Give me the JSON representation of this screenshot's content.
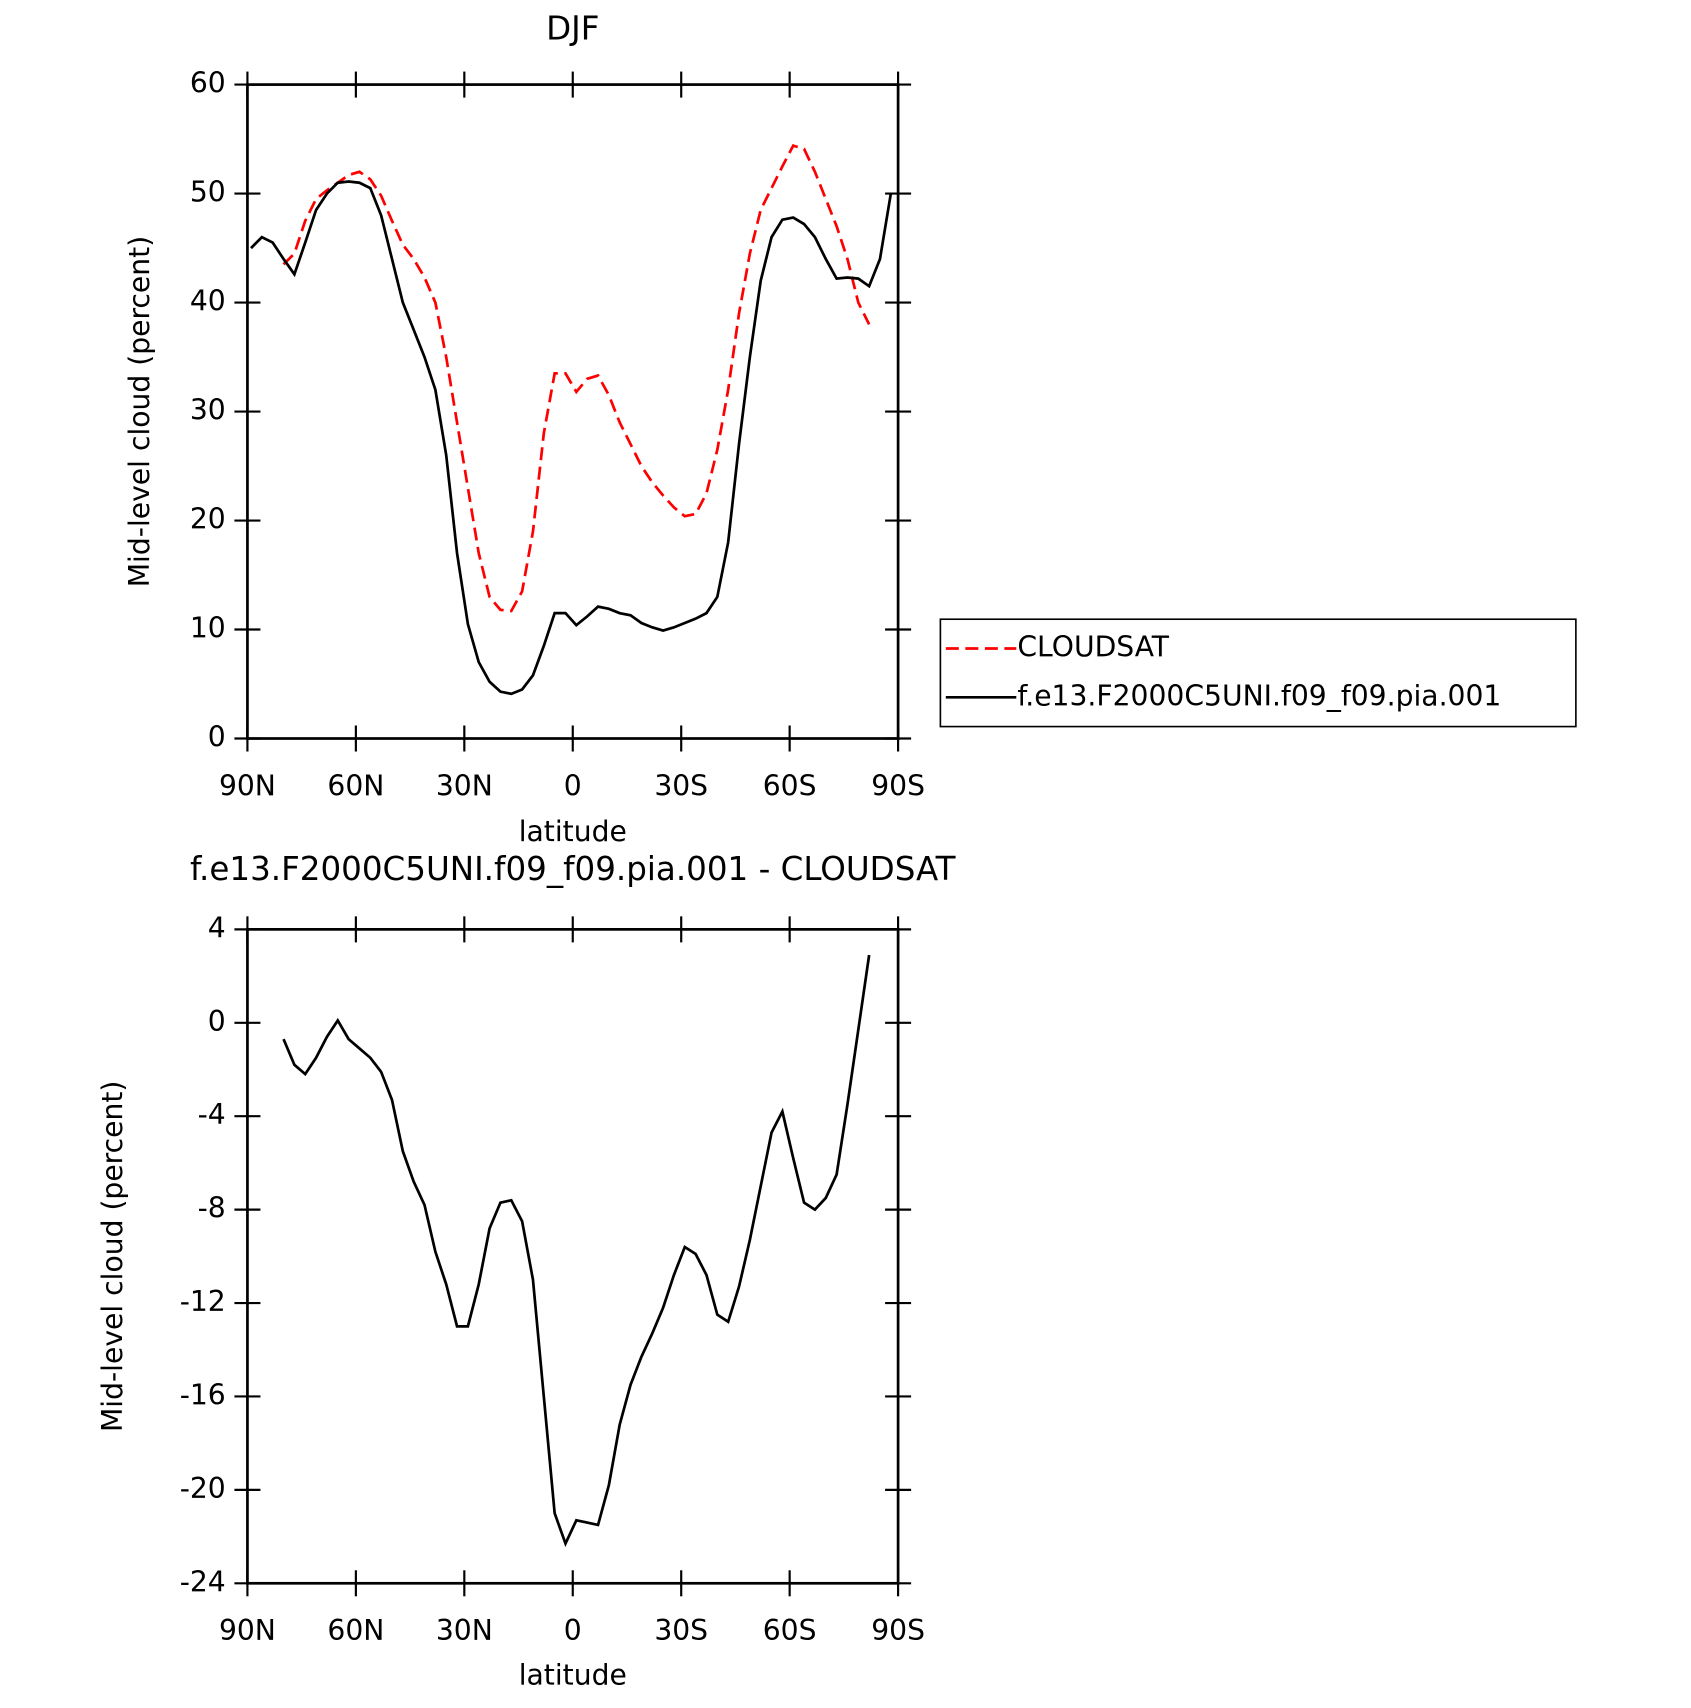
{
  "chart_data": [
    {
      "type": "line",
      "title": "DJF",
      "xlabel": "latitude",
      "ylabel": "Mid-level cloud (percent)",
      "x": [
        89,
        86,
        83,
        80,
        77,
        74,
        71,
        68,
        65,
        62,
        59,
        56,
        53,
        50,
        47,
        44,
        41,
        38,
        35,
        32,
        29,
        26,
        23,
        20,
        17,
        14,
        11,
        8,
        5,
        2,
        -1,
        -4,
        -7,
        -10,
        -13,
        -16,
        -19,
        -22,
        -25,
        -28,
        -31,
        -34,
        -37,
        -40,
        -43,
        -46,
        -49,
        -52,
        -55,
        -58,
        -61,
        -64,
        -67,
        -70,
        -73,
        -76,
        -79,
        -82,
        -85,
        -88
      ],
      "series": [
        {
          "name": "CLOUDSAT",
          "color": "#ff0000",
          "dash": true,
          "values": [
            null,
            null,
            null,
            43.5,
            44.5,
            47.5,
            49.5,
            50.3,
            51,
            51.7,
            52,
            51.3,
            49.8,
            47.5,
            45.3,
            44,
            42.3,
            40,
            35,
            29,
            23,
            17,
            13,
            11.8,
            11.7,
            13.5,
            19,
            28,
            33.5,
            33.5,
            31.8,
            33,
            33.3,
            31.5,
            29,
            27,
            25,
            23.5,
            22.3,
            21.2,
            20.4,
            20.6,
            22.5,
            26.5,
            32,
            39,
            44.5,
            48.5,
            50.5,
            52.5,
            54.4,
            54.1,
            52,
            49.5,
            47,
            44,
            40,
            38,
            null,
            null
          ]
        },
        {
          "name": "f.e13.F2000C5UNI.f09_f09.pia.001",
          "color": "#000000",
          "dash": false,
          "values": [
            45,
            46,
            45.5,
            44,
            42.6,
            45.5,
            48.5,
            50,
            51,
            51.1,
            51,
            50.5,
            48,
            44,
            40,
            37.5,
            35,
            32,
            26,
            17,
            10.5,
            7,
            5.2,
            4.3,
            4.1,
            4.5,
            5.8,
            8.5,
            11.5,
            11.5,
            10.4,
            11.2,
            12.1,
            11.9,
            11.5,
            11.3,
            10.6,
            10.2,
            9.9,
            10.2,
            10.6,
            11,
            11.5,
            13,
            18,
            27,
            35,
            42,
            46,
            47.6,
            47.8,
            47.2,
            46,
            44,
            42.2,
            42.3,
            42.2,
            41.5,
            44,
            50
          ]
        }
      ],
      "xlim": [
        90,
        -90
      ],
      "xticks": [
        {
          "value": 90,
          "label": "90N"
        },
        {
          "value": 60,
          "label": "60N"
        },
        {
          "value": 30,
          "label": "30N"
        },
        0,
        {
          "value": -30,
          "label": "30S"
        },
        {
          "value": -60,
          "label": "60S"
        },
        {
          "value": -90,
          "label": "90S"
        }
      ],
      "ylim": [
        0,
        60
      ],
      "yticks": [
        0,
        10,
        20,
        30,
        40,
        50,
        60
      ],
      "legend": "right"
    },
    {
      "type": "line",
      "title": "f.e13.F2000C5UNI.f09_f09.pia.001 - CLOUDSAT",
      "xlabel": "latitude",
      "ylabel": "Mid-level cloud (percent)",
      "x": [
        80,
        77,
        74,
        71,
        68,
        65,
        62,
        59,
        56,
        53,
        50,
        47,
        44,
        41,
        38,
        35,
        32,
        29,
        26,
        23,
        20,
        17,
        14,
        11,
        8,
        5,
        2,
        -1,
        -4,
        -7,
        -10,
        -13,
        -16,
        -19,
        -22,
        -25,
        -28,
        -31,
        -34,
        -37,
        -40,
        -43,
        -46,
        -49,
        -52,
        -55,
        -58,
        -61,
        -64,
        -67,
        -70,
        -73,
        -76,
        -79,
        -82
      ],
      "series": [
        {
          "color": "#000000",
          "dash": false,
          "values": [
            -0.7,
            -1.8,
            -2.2,
            -1.5,
            -0.6,
            0.1,
            -0.7,
            -1.1,
            -1.5,
            -2.1,
            -3.3,
            -5.5,
            -6.8,
            -7.8,
            -9.8,
            -11.2,
            -13,
            -13,
            -11.2,
            -8.8,
            -7.7,
            -7.6,
            -8.5,
            -11,
            -16,
            -21,
            -22.3,
            -21.3,
            -21.4,
            -21.5,
            -19.8,
            -17.2,
            -15.5,
            -14.3,
            -13.3,
            -12.2,
            -10.8,
            -9.6,
            -9.9,
            -10.8,
            -12.5,
            -12.8,
            -11.3,
            -9.3,
            -7,
            -4.7,
            -3.8,
            -5.8,
            -7.7,
            -8,
            -7.5,
            -6.5,
            -3.5,
            -0.3,
            2.9
          ]
        }
      ],
      "xlim": [
        90,
        -90
      ],
      "xticks": [
        {
          "value": 90,
          "label": "90N"
        },
        {
          "value": 60,
          "label": "60N"
        },
        {
          "value": 30,
          "label": "30N"
        },
        0,
        {
          "value": -30,
          "label": "30S"
        },
        {
          "value": -60,
          "label": "60S"
        },
        {
          "value": -90,
          "label": "90S"
        }
      ],
      "ylim": [
        -24,
        4
      ],
      "yticks": [
        -24,
        -20,
        -16,
        -12,
        -8,
        -4,
        0,
        4
      ]
    }
  ]
}
